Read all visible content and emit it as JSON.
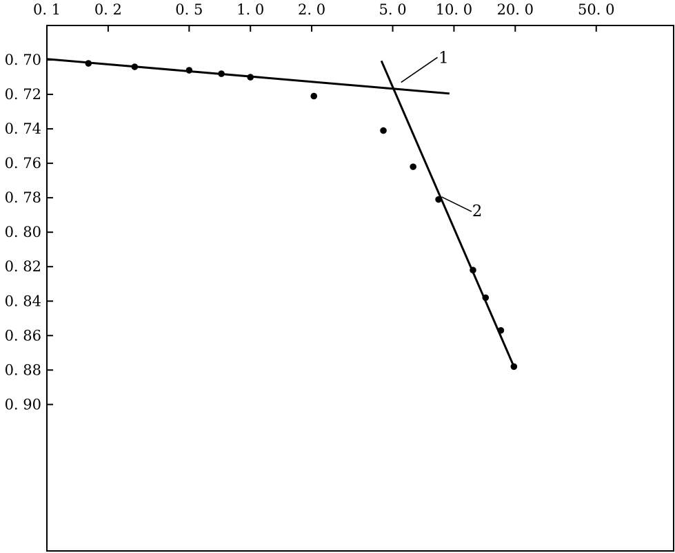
{
  "chart_data": {
    "type": "scatter",
    "x_scale": "log",
    "y_axis_inverted": true,
    "grid": false,
    "xlim": [
      0.1,
      120
    ],
    "ylim": [
      0.68,
      0.985
    ],
    "x_ticks": [
      {
        "value": 0.1,
        "label": "0. 1"
      },
      {
        "value": 0.2,
        "label": "0. 2"
      },
      {
        "value": 0.5,
        "label": "0. 5"
      },
      {
        "value": 1.0,
        "label": "1. 0"
      },
      {
        "value": 2.0,
        "label": "2. 0"
      },
      {
        "value": 5.0,
        "label": "5. 0"
      },
      {
        "value": 10.0,
        "label": "10. 0"
      },
      {
        "value": 20.0,
        "label": "20. 0"
      },
      {
        "value": 50.0,
        "label": "50. 0"
      }
    ],
    "y_ticks": [
      {
        "value": 0.7,
        "label": "0. 70"
      },
      {
        "value": 0.72,
        "label": "0. 72"
      },
      {
        "value": 0.74,
        "label": "0. 74"
      },
      {
        "value": 0.76,
        "label": "0. 76"
      },
      {
        "value": 0.78,
        "label": "0. 78"
      },
      {
        "value": 0.8,
        "label": "0. 80"
      },
      {
        "value": 0.82,
        "label": "0. 82"
      },
      {
        "value": 0.84,
        "label": "0. 84"
      },
      {
        "value": 0.86,
        "label": "0. 86"
      },
      {
        "value": 0.88,
        "label": "0. 88"
      },
      {
        "value": 0.9,
        "label": "0. 90"
      }
    ],
    "points": [
      {
        "x": 0.16,
        "y": 0.702
      },
      {
        "x": 0.27,
        "y": 0.704
      },
      {
        "x": 0.5,
        "y": 0.706
      },
      {
        "x": 0.72,
        "y": 0.708
      },
      {
        "x": 1.0,
        "y": 0.71
      },
      {
        "x": 2.05,
        "y": 0.721
      },
      {
        "x": 4.5,
        "y": 0.741
      },
      {
        "x": 6.3,
        "y": 0.762
      },
      {
        "x": 8.4,
        "y": 0.781
      },
      {
        "x": 12.4,
        "y": 0.822
      },
      {
        "x": 14.3,
        "y": 0.838
      },
      {
        "x": 17.0,
        "y": 0.857
      },
      {
        "x": 19.7,
        "y": 0.878
      }
    ],
    "lines": [
      {
        "label": "1",
        "from": {
          "x": 0.1,
          "y": 0.6995
        },
        "to": {
          "x": 9.5,
          "y": 0.7195
        }
      },
      {
        "label": "2",
        "from": {
          "x": 4.4,
          "y": 0.7005
        },
        "to": {
          "x": 19.7,
          "y": 0.878
        }
      }
    ],
    "annotations": [
      {
        "text": "1",
        "leader_from": {
          "x": 5.5,
          "y": 0.713
        },
        "leader_to": {
          "x": 8.3,
          "y": 0.6985
        },
        "text_at": {
          "x": 8.9,
          "y": 0.6985
        }
      },
      {
        "text": "2",
        "leader_from": {
          "x": 8.7,
          "y": 0.7795
        },
        "leader_to": {
          "x": 12.2,
          "y": 0.788
        },
        "text_at": {
          "x": 13.0,
          "y": 0.7875
        }
      }
    ]
  }
}
